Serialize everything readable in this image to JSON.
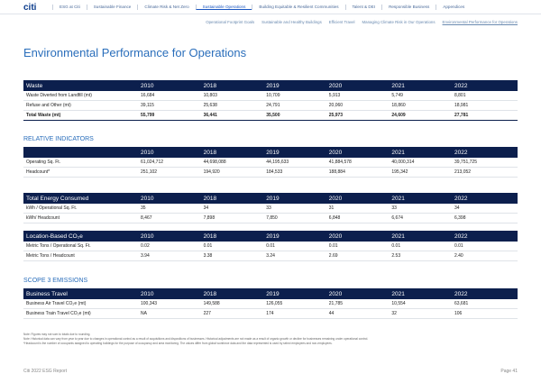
{
  "nav": {
    "logo": "citi",
    "items": [
      "ESG at Citi",
      "Sustainable Finance",
      "Climate Risk & Net Zero",
      "Sustainable Operations",
      "Building Equitable & Resilient Communities",
      "Talent & DEI",
      "Responsible Business",
      "Appendices"
    ]
  },
  "subnav": [
    "Operational Footprint Goals",
    "Sustainable and Healthy Buildings",
    "Efficient Travel",
    "Managing Climate Risk in Our Operations",
    "Environmental Performance for Operations"
  ],
  "title": "Environmental Performance for Operations",
  "tables": [
    {
      "section": null,
      "header": [
        "Waste",
        "2010",
        "2018",
        "2019",
        "2020",
        "2021",
        "2022"
      ],
      "rows": [
        [
          "Waste Diverted from Landfill (mt)",
          "16,684",
          "10,803",
          "10,709",
          "5,913",
          "5,749",
          "8,801"
        ],
        [
          "Refuse and Other (mt)",
          "39,115",
          "25,638",
          "24,791",
          "20,060",
          "18,860",
          "18,981"
        ],
        [
          "Total Waste (mt)",
          "55,799",
          "36,441",
          "35,500",
          "25,973",
          "24,609",
          "27,781"
        ]
      ]
    },
    {
      "section": "RELATIVE INDICATORS",
      "header": [
        null,
        "2010",
        "2018",
        "2019",
        "2020",
        "2021",
        "2022"
      ],
      "rows": [
        [
          "Operating Sq. Ft.",
          "61,024,712",
          "44,698,088",
          "44,195,633",
          "41,884,578",
          "40,000,314",
          "39,751,725"
        ],
        [
          "Headcount*",
          "251,102",
          "194,920",
          "184,533",
          "188,884",
          "195,342",
          "213,052"
        ]
      ]
    },
    {
      "section": null,
      "header": [
        "Total Energy Consumed",
        "2010",
        "2018",
        "2019",
        "2020",
        "2021",
        "2022"
      ],
      "rows": [
        [
          "kWh / Operational Sq. Ft.",
          "35",
          "34",
          "33",
          "31",
          "33",
          "34"
        ],
        [
          "kWh/ Headcount",
          "8,467",
          "7,898",
          "7,850",
          "6,848",
          "6,674",
          "6,398"
        ]
      ]
    },
    {
      "section": null,
      "header": [
        "Location-Based CO₂e",
        "2010",
        "2018",
        "2019",
        "2020",
        "2021",
        "2022"
      ],
      "rows": [
        [
          "Metric Tons / Operational Sq. Ft.",
          "0.02",
          "0.01",
          "0.01",
          "0.01",
          "0.01",
          "0.01"
        ],
        [
          "Metric Tons / Headcount",
          "3.94",
          "3.38",
          "3.24",
          "2.69",
          "2.53",
          "2.40"
        ]
      ]
    },
    {
      "section": "SCOPE 3 EMISSIONS",
      "header": [
        "Business Travel",
        "2010",
        "2018",
        "2019",
        "2020",
        "2021",
        "2022"
      ],
      "rows": [
        [
          "Business Air Travel CO₂e (mt)",
          "100,343",
          "149,588",
          "126,055",
          "21,785",
          "10,554",
          "63,681"
        ],
        [
          "Business Train Travel CO₂e (mt)",
          "NA",
          "227",
          "174",
          "44",
          "32",
          "106"
        ]
      ]
    }
  ],
  "notes": [
    "Note: Figures may not sum to totals due to rounding.",
    "Note: Historical data can vary from year to year due to changes in operational control as a result of acquisitions and dispositions of businesses. Historical adjustments are not made as a result of organic growth or decline for businesses remaining under operational control.",
    "*Headcount is the number of occupants assigned to operating buildings for the purpose of occupancy and area monitoring. The values differ from global workforce data and the data represented is used by select employees and non-employees."
  ],
  "footer": {
    "left": "Citi 2022 ESG Report",
    "right": "Page 41"
  }
}
